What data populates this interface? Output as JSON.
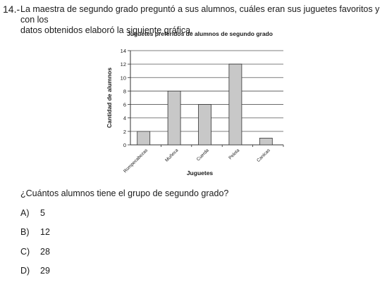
{
  "question": {
    "number": "14.-",
    "text_line1": "La maestra de segundo grado preguntó a sus alumnos, cuáles eran sus juguetes favoritos y con los",
    "text_line2": "datos obtenidos elaboró la siguiente gráfica.",
    "ask": "¿Cuántos alumnos tiene el grupo de segundo grado?",
    "options": [
      {
        "letter": "A)",
        "value": "5"
      },
      {
        "letter": "B)",
        "value": "12"
      },
      {
        "letter": "C)",
        "value": "28"
      },
      {
        "letter": "D)",
        "value": "29"
      }
    ]
  },
  "chart_data": {
    "type": "bar",
    "title": "Juguetes preferidos de alumnos de segundo grado",
    "xlabel": "Juguetes",
    "ylabel": "Cantidad de alumnos",
    "categories": [
      "Rompecabezas",
      "Muñeca",
      "Cuerda",
      "Pelota",
      "Canicas"
    ],
    "values": [
      2,
      8,
      6,
      12,
      1
    ],
    "ylim": [
      0,
      14
    ],
    "yticks": [
      0,
      2,
      4,
      6,
      8,
      10,
      12,
      14
    ],
    "grid": true,
    "bar_color": "#c8c8c8"
  }
}
